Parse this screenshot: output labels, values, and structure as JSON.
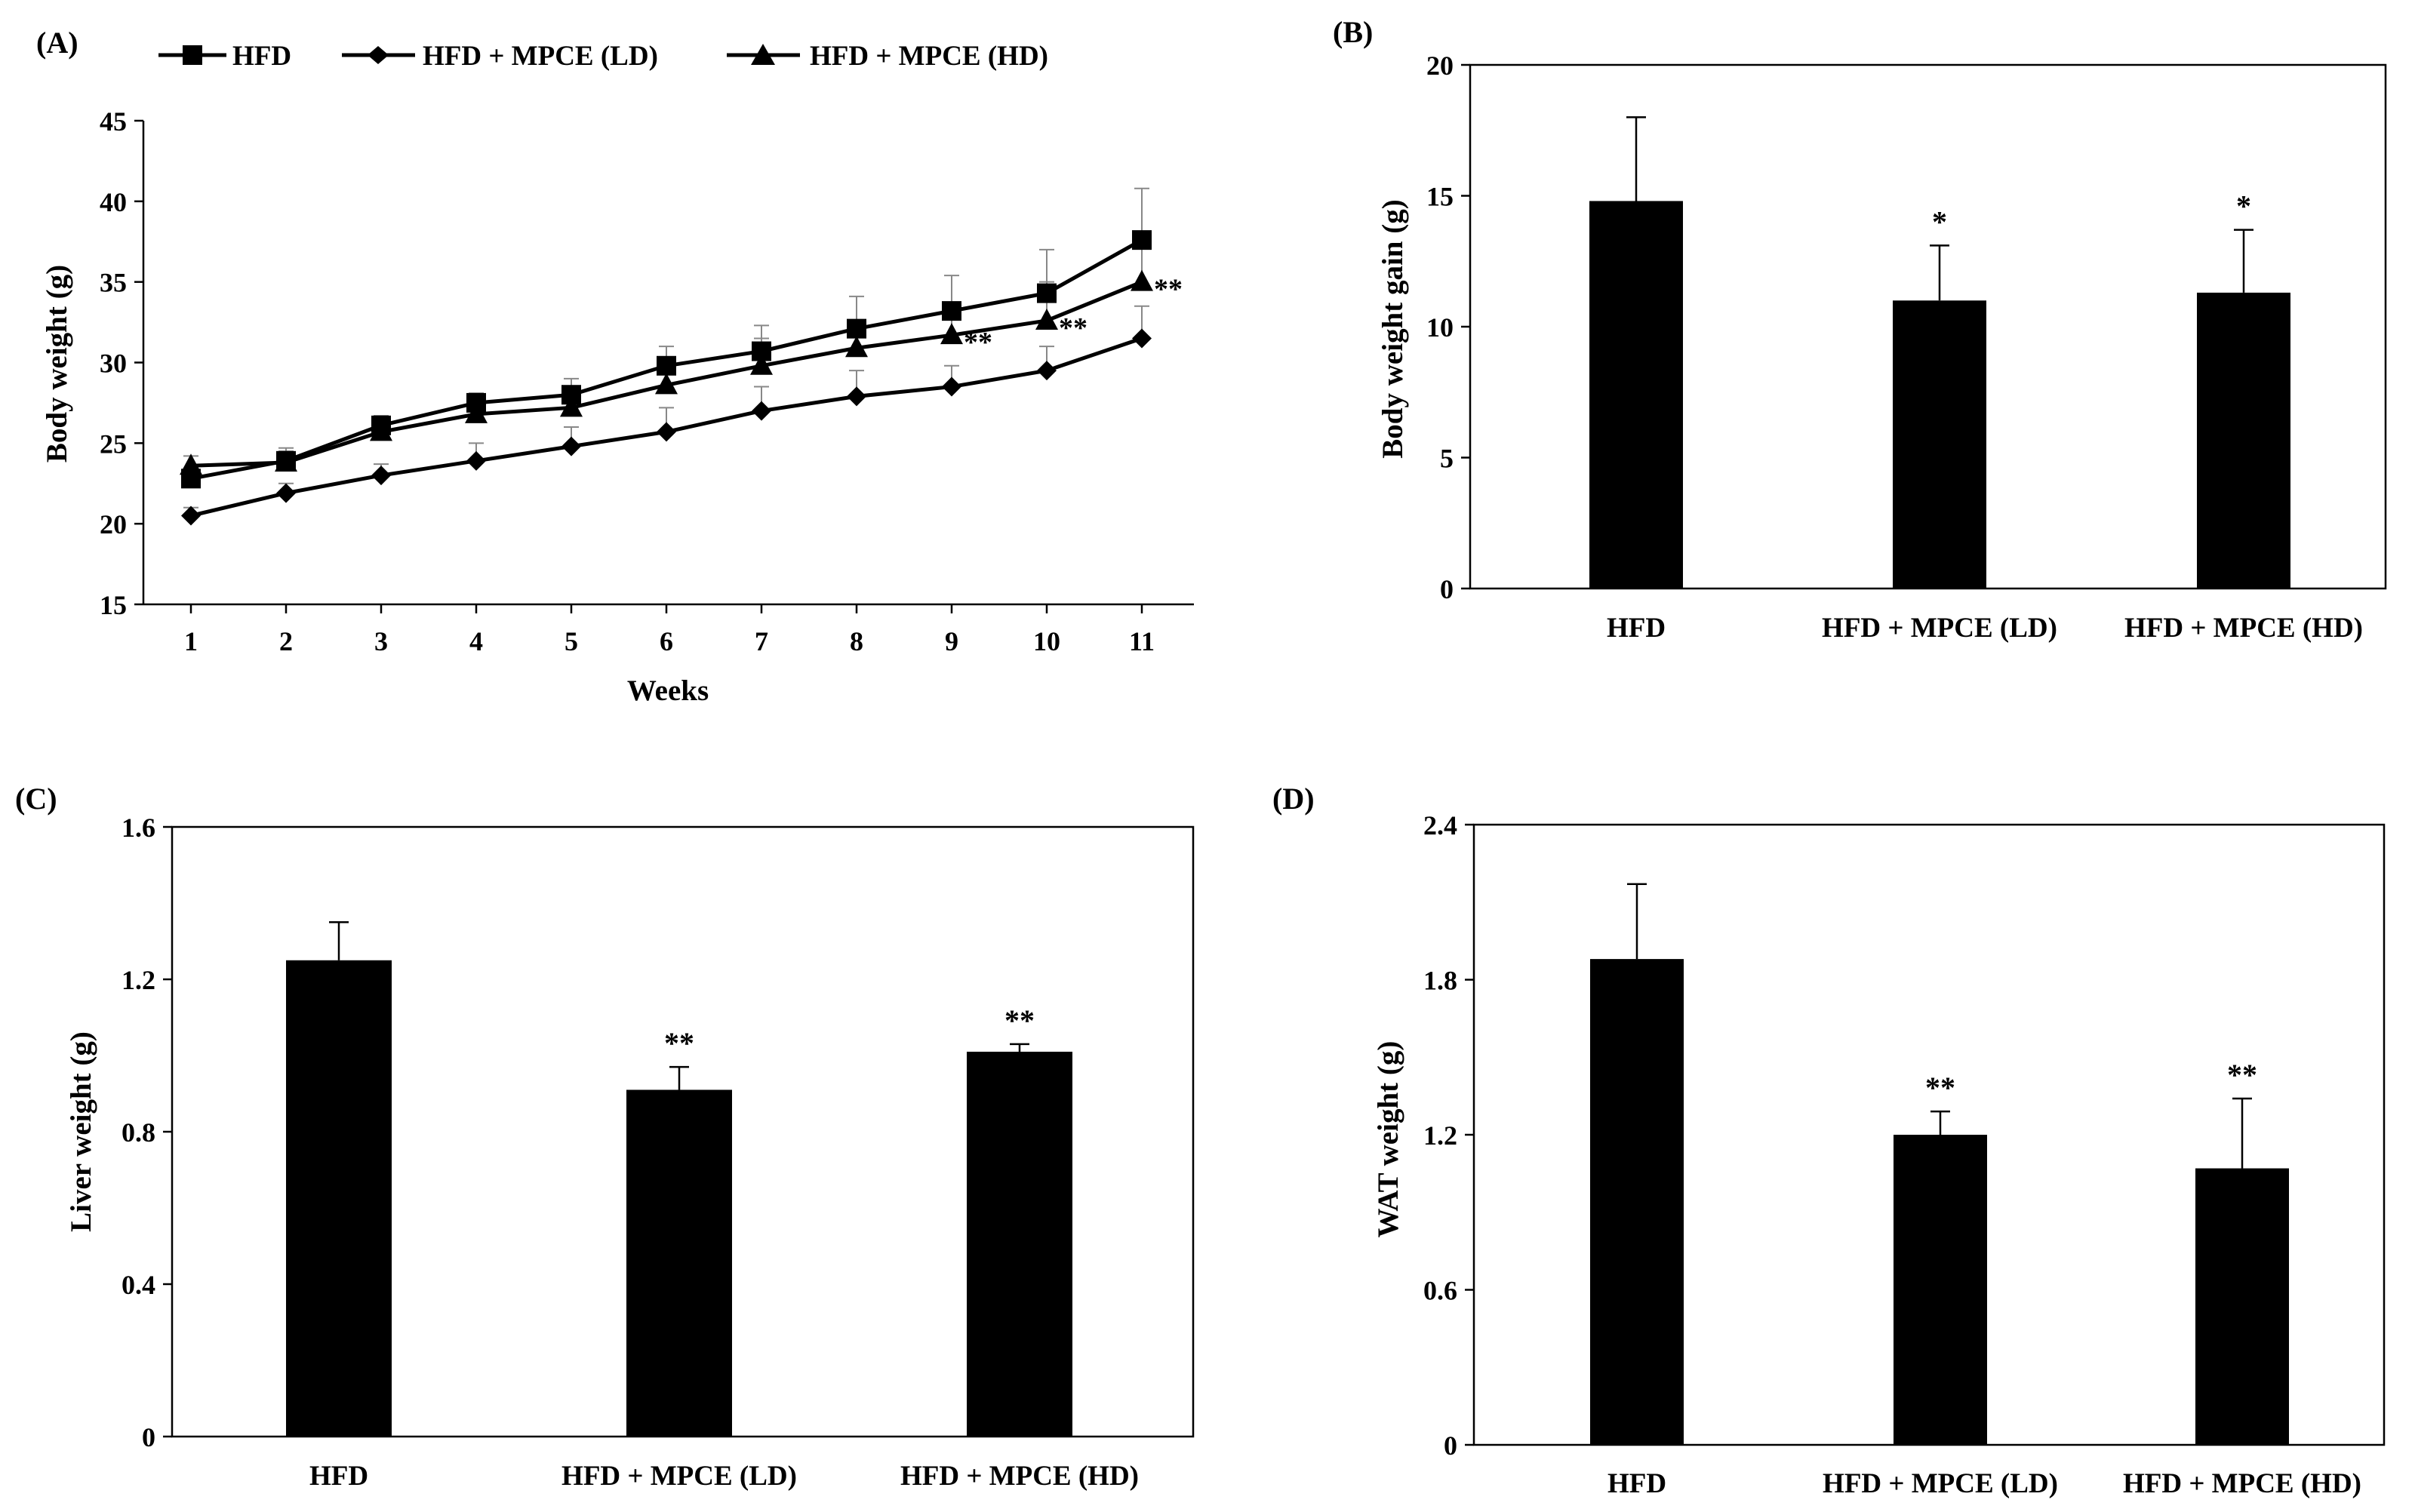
{
  "colors": {
    "ink": "#000000",
    "background": "#ffffff"
  },
  "chart_data": [
    {
      "panel": "(A)",
      "type": "line",
      "xlabel": "Weeks",
      "ylabel": "Body weight (g)",
      "x": [
        1,
        2,
        3,
        4,
        5,
        6,
        7,
        8,
        9,
        10,
        11
      ],
      "ylim": [
        15,
        45
      ],
      "yticks": [
        15,
        20,
        25,
        30,
        35,
        40,
        45
      ],
      "grid": false,
      "legend_position": "top",
      "series": [
        {
          "name": "HFD",
          "marker": "square",
          "values": [
            22.8,
            23.9,
            26.1,
            27.5,
            28.0,
            29.8,
            30.7,
            32.1,
            33.2,
            34.3,
            37.6
          ],
          "errors": [
            0.6,
            0.8,
            0.6,
            0.6,
            1.0,
            1.2,
            1.6,
            2.0,
            2.2,
            2.7,
            3.2
          ]
        },
        {
          "name": "HFD + MPCE (LD)",
          "marker": "diamond",
          "values": [
            20.5,
            21.9,
            23.0,
            23.9,
            24.8,
            25.7,
            27.0,
            27.9,
            28.5,
            29.5,
            31.5
          ],
          "errors": [
            0.5,
            0.6,
            0.7,
            1.1,
            1.2,
            1.5,
            1.5,
            1.6,
            1.3,
            1.5,
            2.0
          ]
        },
        {
          "name": "HFD + MPCE (HD)",
          "marker": "triangle",
          "values": [
            23.6,
            23.8,
            25.7,
            26.8,
            27.2,
            28.6,
            29.8,
            30.9,
            31.7,
            32.6,
            35.0
          ],
          "errors": [
            0.6,
            0.7,
            0.5,
            0.9,
            1.3,
            1.6,
            1.7,
            1.7,
            1.9,
            2.4,
            2.6
          ]
        }
      ],
      "annotations": [
        {
          "x": 9,
          "y": 31.7,
          "text": "**"
        },
        {
          "x": 10,
          "y": 32.6,
          "text": "**"
        },
        {
          "x": 11,
          "y": 35.0,
          "text": "**"
        }
      ]
    },
    {
      "panel": "(B)",
      "type": "bar",
      "ylabel": "Body weight gain (g)",
      "categories": [
        "HFD",
        "HFD + MPCE (LD)",
        "HFD + MPCE (HD)"
      ],
      "values": [
        14.8,
        11.0,
        11.3
      ],
      "errors": [
        3.2,
        2.1,
        2.4
      ],
      "significance": [
        "",
        "*",
        "*"
      ],
      "ylim": [
        0,
        20
      ],
      "yticks": [
        0,
        5,
        10,
        15,
        20
      ],
      "ytick_labels": [
        "0",
        "5",
        "10",
        "15",
        "20"
      ]
    },
    {
      "panel": "(C)",
      "type": "bar",
      "ylabel": "Liver weight (g)",
      "categories": [
        "HFD",
        "HFD + MPCE (LD)",
        "HFD + MPCE (HD)"
      ],
      "values": [
        1.25,
        0.91,
        1.01
      ],
      "errors": [
        0.1,
        0.06,
        0.02
      ],
      "significance": [
        "",
        "**",
        "**"
      ],
      "ylim": [
        0,
        1.6
      ],
      "yticks": [
        0,
        0.4,
        0.8,
        1.2,
        1.6
      ],
      "ytick_labels": [
        "0",
        "0.4",
        "0.8",
        "1.2",
        "1.6"
      ]
    },
    {
      "panel": "(D)",
      "type": "bar",
      "ylabel": "WAT weight (g)",
      "categories": [
        "HFD",
        "HFD + MPCE (LD)",
        "HFD + MPCE (HD)"
      ],
      "values": [
        1.88,
        1.2,
        1.07
      ],
      "errors": [
        0.29,
        0.09,
        0.27
      ],
      "significance": [
        "",
        "**",
        "**"
      ],
      "ylim": [
        0,
        2.4
      ],
      "yticks": [
        0,
        0.6,
        1.2,
        1.8,
        2.4
      ],
      "ytick_labels": [
        "0",
        "0.6",
        "1.2",
        "1.8",
        "2.4"
      ]
    }
  ]
}
